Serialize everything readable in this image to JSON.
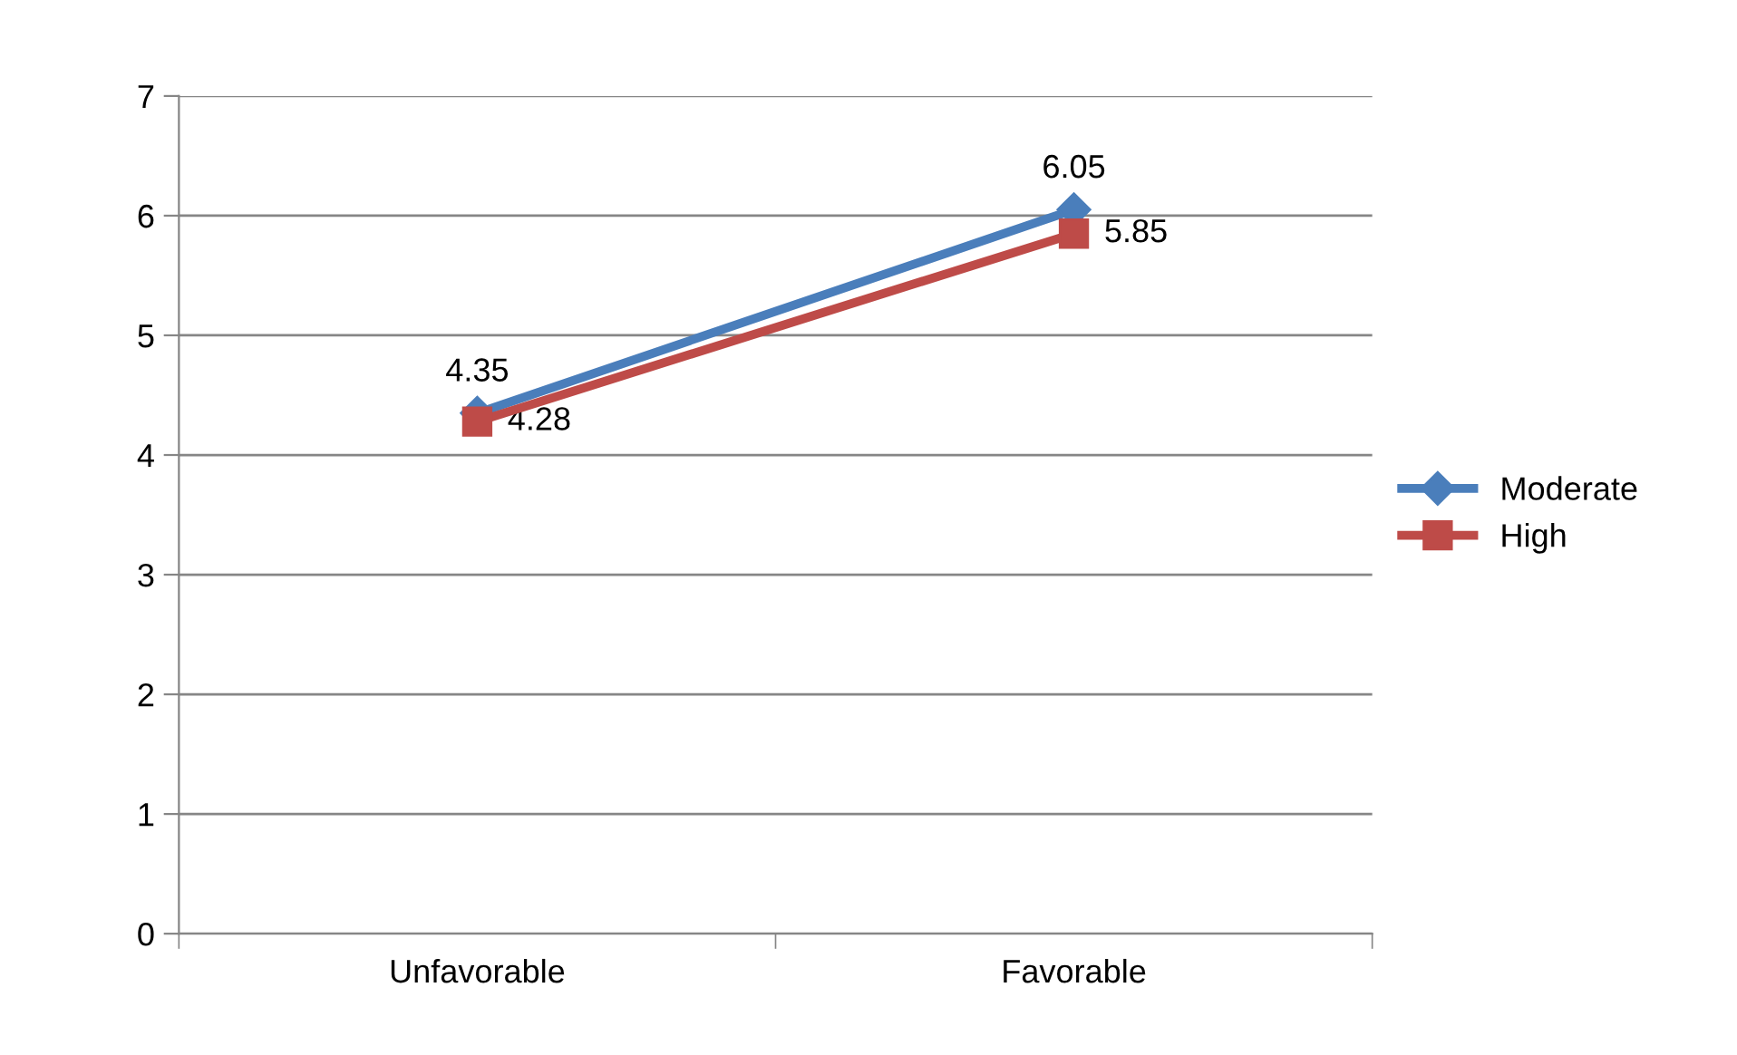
{
  "chart_data": {
    "type": "line",
    "categories": [
      "Unfavorable",
      "Favorable"
    ],
    "series": [
      {
        "name": "Moderate",
        "color": "#4a7ebb",
        "values": [
          4.35,
          6.05
        ],
        "marker": "diamond"
      },
      {
        "name": "High",
        "color": "#be4b48",
        "values": [
          4.28,
          5.85
        ],
        "marker": "square"
      }
    ],
    "ylim": [
      0,
      7
    ],
    "yticks": [
      0,
      1,
      2,
      3,
      4,
      5,
      6,
      7
    ],
    "grid": "y",
    "legend": "right",
    "data_labels": true,
    "line_style": "solid"
  }
}
